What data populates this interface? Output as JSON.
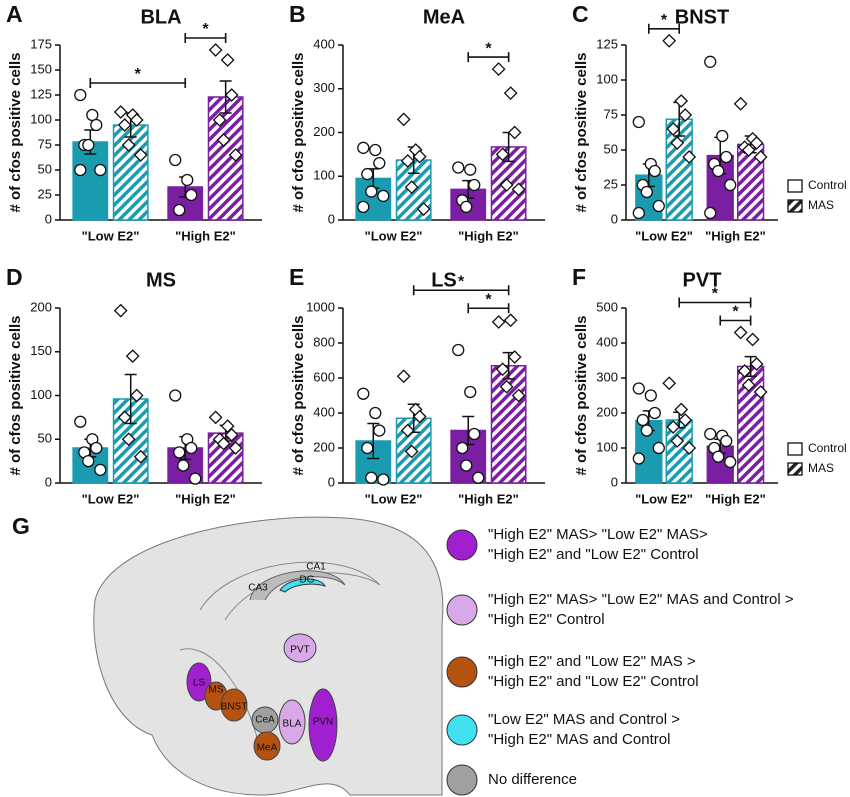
{
  "chart_data": [
    {
      "panel": "A",
      "type": "bar",
      "title": "BLA",
      "y_label": "# of cfos positive cells",
      "categories": [
        "\"Low E2\"",
        "\"High E2\""
      ],
      "category_colors": [
        "#1b9bb0",
        "#7a1fa2"
      ],
      "ylim": [
        0,
        175
      ],
      "yticks": [
        0,
        25,
        50,
        75,
        100,
        125,
        150,
        175
      ],
      "legend": false,
      "series": [
        {
          "name": "Control",
          "pattern": "solid",
          "values": [
            78,
            33
          ],
          "errors": [
            12,
            10
          ],
          "points": [
            [
              125,
              105,
              95,
              75,
              75,
              50,
              50
            ],
            [
              60,
              40,
              25,
              10
            ]
          ]
        },
        {
          "name": "MAS",
          "pattern": "hatch",
          "values": [
            95,
            123
          ],
          "errors": [
            12,
            16
          ],
          "points": [
            [
              108,
              105,
              100,
              95,
              75,
              65
            ],
            [
              170,
              160,
              125,
              100,
              80,
              65
            ]
          ]
        }
      ],
      "annotations": [
        {
          "text": "*",
          "from": [
            0,
            0
          ],
          "to": [
            1,
            0
          ]
        },
        {
          "text": "*",
          "from": [
            1,
            0
          ],
          "to": [
            1,
            1
          ]
        }
      ]
    },
    {
      "panel": "B",
      "type": "bar",
      "title": "MeA",
      "y_label": "# of cfos positive cells",
      "categories": [
        "\"Low E2\"",
        "\"High E2\""
      ],
      "category_colors": [
        "#1b9bb0",
        "#7a1fa2"
      ],
      "ylim": [
        0,
        400
      ],
      "yticks": [
        0,
        100,
        200,
        300,
        400
      ],
      "legend": false,
      "series": [
        {
          "name": "Control",
          "pattern": "solid",
          "values": [
            95,
            70
          ],
          "errors": [
            22,
            20
          ],
          "points": [
            [
              165,
              160,
              130,
              105,
              65,
              55,
              30
            ],
            [
              120,
              115,
              80,
              45,
              30
            ]
          ]
        },
        {
          "name": "MAS",
          "pattern": "hatch",
          "values": [
            137,
            167
          ],
          "errors": [
            30,
            33
          ],
          "points": [
            [
              230,
              160,
              145,
              135,
              75,
              25
            ],
            [
              345,
              290,
              200,
              150,
              80,
              70
            ]
          ]
        }
      ],
      "annotations": [
        {
          "text": "*",
          "from": [
            1,
            0
          ],
          "to": [
            1,
            1
          ]
        }
      ]
    },
    {
      "panel": "C",
      "type": "bar",
      "title": "BNST",
      "y_label": "# of cfos positive cells",
      "categories": [
        "\"Low E2\"",
        "\"High E2\""
      ],
      "category_colors": [
        "#1b9bb0",
        "#7a1fa2"
      ],
      "ylim": [
        0,
        125
      ],
      "yticks": [
        0,
        25,
        50,
        75,
        100,
        125
      ],
      "legend": true,
      "series": [
        {
          "name": "Control",
          "pattern": "solid",
          "values": [
            32,
            46
          ],
          "errors": [
            8,
            13
          ],
          "points": [
            [
              70,
              40,
              35,
              25,
              20,
              10,
              5
            ],
            [
              113,
              60,
              45,
              40,
              35,
              25,
              5
            ]
          ]
        },
        {
          "name": "MAS",
          "pattern": "hatch",
          "values": [
            72,
            54
          ],
          "errors": [
            12,
            6
          ],
          "points": [
            [
              128,
              85,
              75,
              65,
              55,
              45
            ],
            [
              83,
              58,
              55,
              52,
              50,
              45
            ]
          ]
        }
      ],
      "annotations": [
        {
          "text": "*",
          "from": [
            0,
            0
          ],
          "to": [
            0,
            1
          ]
        }
      ]
    },
    {
      "panel": "D",
      "type": "bar",
      "title": "MS",
      "y_label": "# of cfos positive cells",
      "categories": [
        "\"Low E2\"",
        "\"High E2\""
      ],
      "category_colors": [
        "#1b9bb0",
        "#7a1fa2"
      ],
      "ylim": [
        0,
        200
      ],
      "yticks": [
        0,
        50,
        100,
        150,
        200
      ],
      "legend": false,
      "series": [
        {
          "name": "Control",
          "pattern": "solid",
          "values": [
            40,
            40
          ],
          "errors": [
            10,
            13
          ],
          "points": [
            [
              70,
              50,
              40,
              35,
              25,
              15
            ],
            [
              100,
              50,
              40,
              35,
              20,
              5
            ]
          ]
        },
        {
          "name": "MAS",
          "pattern": "hatch",
          "values": [
            96,
            57
          ],
          "errors": [
            28,
            9
          ],
          "points": [
            [
              197,
              145,
              100,
              75,
              50,
              30
            ],
            [
              75,
              65,
              55,
              50,
              45,
              40
            ]
          ]
        }
      ],
      "annotations": []
    },
    {
      "panel": "E",
      "type": "bar",
      "title": "LS",
      "y_label": "# of cfos positive cells",
      "categories": [
        "\"Low E2\"",
        "\"High E2\""
      ],
      "category_colors": [
        "#1b9bb0",
        "#7a1fa2"
      ],
      "ylim": [
        0,
        1000
      ],
      "yticks": [
        0,
        200,
        400,
        600,
        800,
        1000
      ],
      "legend": false,
      "series": [
        {
          "name": "Control",
          "pattern": "solid",
          "values": [
            240,
            300
          ],
          "errors": [
            100,
            80
          ],
          "points": [
            [
              510,
              400,
              300,
              200,
              30,
              20
            ],
            [
              760,
              520,
              280,
              200,
              100,
              30
            ]
          ]
        },
        {
          "name": "MAS",
          "pattern": "hatch",
          "values": [
            370,
            670
          ],
          "errors": [
            80,
            75
          ],
          "points": [
            [
              610,
              420,
              380,
              300,
              180
            ],
            [
              920,
              930,
              720,
              650,
              550,
              500
            ]
          ]
        }
      ],
      "annotations": [
        {
          "text": "*",
          "from": [
            1,
            0
          ],
          "to": [
            1,
            1
          ]
        },
        {
          "text": "*",
          "from": [
            0,
            1
          ],
          "to": [
            1,
            1
          ]
        }
      ]
    },
    {
      "panel": "F",
      "type": "bar",
      "title": "PVT",
      "y_label": "# of cfos positive cells",
      "categories": [
        "\"Low E2\"",
        "\"High E2\""
      ],
      "category_colors": [
        "#1b9bb0",
        "#7a1fa2"
      ],
      "ylim": [
        0,
        500
      ],
      "yticks": [
        0,
        100,
        200,
        300,
        400,
        500
      ],
      "legend": true,
      "series": [
        {
          "name": "Control",
          "pattern": "solid",
          "values": [
            178,
            105
          ],
          "errors": [
            28,
            20
          ],
          "points": [
            [
              270,
              250,
              200,
              180,
              150,
              100,
              70
            ],
            [
              140,
              135,
              120,
              100,
              75,
              60
            ]
          ]
        },
        {
          "name": "MAS",
          "pattern": "hatch",
          "values": [
            180,
            333
          ],
          "errors": [
            22,
            28
          ],
          "points": [
            [
              285,
              210,
              180,
              160,
              120,
              100
            ],
            [
              430,
              410,
              340,
              320,
              280,
              260
            ]
          ]
        }
      ],
      "annotations": [
        {
          "text": "*",
          "from": [
            1,
            0
          ],
          "to": [
            1,
            1
          ]
        },
        {
          "text": "*",
          "from": [
            0,
            1
          ],
          "to": [
            1,
            1
          ]
        }
      ]
    }
  ],
  "diagram": {
    "panel": "G",
    "regions": [
      {
        "name": "CA1",
        "color": "none"
      },
      {
        "name": "DG",
        "color": "#40e0f0"
      },
      {
        "name": "CA3",
        "color": "none"
      },
      {
        "name": "PVT",
        "color": "#d8a8e8"
      },
      {
        "name": "LS",
        "color": "#a020d0"
      },
      {
        "name": "MS",
        "color": "#b5520f"
      },
      {
        "name": "BNST",
        "color": "#b5520f"
      },
      {
        "name": "CeA",
        "color": "#a0a0a0"
      },
      {
        "name": "BLA",
        "color": "#d8a8e8"
      },
      {
        "name": "MeA",
        "color": "#b5520f"
      },
      {
        "name": "PVN",
        "color": "#a020d0"
      }
    ],
    "legend": [
      {
        "color": "#a020d0",
        "lines": [
          "\"High E2\" MAS> \"Low E2\" MAS>",
          "\"High E2\" and \"Low E2\" Control"
        ]
      },
      {
        "color": "#d8a8e8",
        "lines": [
          "\"High E2\" MAS> \"Low E2\" MAS and Control >",
          "\"High E2\" Control"
        ]
      },
      {
        "color": "#b5520f",
        "lines": [
          "\"High E2\" and \"Low E2\" MAS >",
          "\"High E2\" and \"Low E2\" Control"
        ]
      },
      {
        "color": "#40e0f0",
        "lines": [
          "\"Low E2\" MAS and Control >",
          "\"High E2\" MAS and Control"
        ]
      },
      {
        "color": "#a0a0a0",
        "lines": [
          "No difference"
        ]
      }
    ]
  }
}
